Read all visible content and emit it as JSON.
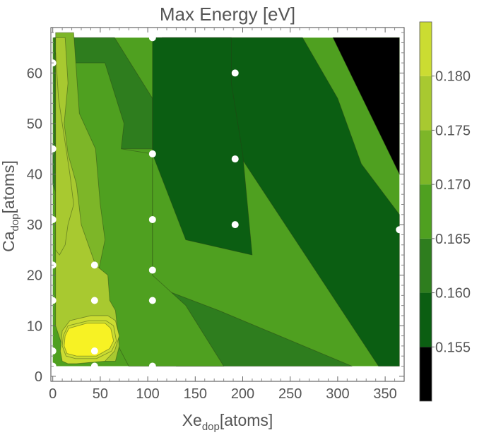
{
  "chart_data": {
    "type": "contour",
    "title": "Max Energy [eV]",
    "xlabel": {
      "main": "Xe",
      "sub": "dop",
      "unit": "[atoms]"
    },
    "ylabel": {
      "main": "Ca",
      "sub": "dop",
      "unit": "[atoms]"
    },
    "xlim": [
      -2,
      370
    ],
    "ylim": [
      -1,
      69
    ],
    "x_data_range": [
      0,
      365
    ],
    "y_data_range": [
      2,
      67
    ],
    "xticks": [
      0,
      50,
      100,
      150,
      200,
      250,
      300,
      350
    ],
    "yticks": [
      0,
      10,
      20,
      30,
      40,
      50,
      60
    ],
    "colorbar": {
      "levels": [
        0.15,
        0.155,
        0.16,
        0.165,
        0.17,
        0.175,
        0.18,
        0.185
      ],
      "tick_values": [
        0.155,
        0.16,
        0.165,
        0.17,
        0.175,
        0.18
      ],
      "tick_labels": [
        "0.155",
        "0.160",
        "0.165",
        "0.170",
        "0.175",
        "0.180"
      ],
      "colors": [
        "#000000",
        "#0b5e12",
        "#2e7d1e",
        "#4fa020",
        "#7db628",
        "#a8c930",
        "#cbdc32",
        "#f7f224"
      ]
    },
    "sample_points": [
      {
        "x": 0,
        "y": 2
      },
      {
        "x": 0,
        "y": 5
      },
      {
        "x": 0,
        "y": 15
      },
      {
        "x": 0,
        "y": 22
      },
      {
        "x": 0,
        "y": 31
      },
      {
        "x": 0,
        "y": 45
      },
      {
        "x": 0,
        "y": 62
      },
      {
        "x": 44,
        "y": 2
      },
      {
        "x": 44,
        "y": 5
      },
      {
        "x": 44,
        "y": 15
      },
      {
        "x": 44,
        "y": 22
      },
      {
        "x": 105,
        "y": 2
      },
      {
        "x": 105,
        "y": 15
      },
      {
        "x": 105,
        "y": 21
      },
      {
        "x": 105,
        "y": 31
      },
      {
        "x": 105,
        "y": 44
      },
      {
        "x": 105,
        "y": 67
      },
      {
        "x": 192,
        "y": 30
      },
      {
        "x": 192,
        "y": 43
      },
      {
        "x": 192,
        "y": 60
      },
      {
        "x": 365,
        "y": 29
      }
    ],
    "regions": [
      {
        "level": 0.1575,
        "polygon": [
          [
            115,
            67
          ],
          [
            263,
            67
          ],
          [
            300,
            55
          ],
          [
            325,
            42
          ],
          [
            365,
            32
          ],
          [
            365,
            2
          ],
          [
            343,
            2
          ]
        ]
      },
      {
        "level": 0.1525,
        "polygon": [
          [
            295,
            67
          ],
          [
            365,
            67
          ],
          [
            365,
            40
          ]
        ]
      },
      {
        "level": 0.1625,
        "polygon": [
          [
            105,
            42
          ],
          [
            105,
            18
          ],
          [
            175,
            13
          ],
          [
            315,
            2
          ],
          [
            130,
            2
          ],
          [
            90,
            10
          ]
        ]
      },
      {
        "level": 0.1625,
        "polygon": [
          [
            1,
            67
          ],
          [
            65,
            67
          ],
          [
            105,
            55
          ],
          [
            105,
            45
          ],
          [
            1,
            45
          ]
        ]
      },
      {
        "level": 0.1575,
        "polygon": [
          [
            105,
            67
          ],
          [
            188,
            67
          ],
          [
            188,
            58
          ],
          [
            200,
            44
          ],
          [
            210,
            24
          ],
          [
            140,
            27
          ],
          [
            105,
            44
          ]
        ]
      },
      {
        "level": 0.1675,
        "polygon": [
          [
            6,
            36
          ],
          [
            6,
            62
          ],
          [
            55,
            62
          ],
          [
            75,
            50
          ],
          [
            72,
            45
          ],
          [
            105,
            44
          ],
          [
            105,
            20
          ],
          [
            140,
            14
          ],
          [
            180,
            2
          ],
          [
            80,
            2
          ],
          [
            30,
            20
          ]
        ]
      },
      {
        "level": 0.1725,
        "polygon": [
          [
            3,
            68
          ],
          [
            22,
            68
          ],
          [
            25,
            60
          ],
          [
            28,
            52
          ],
          [
            45,
            45
          ],
          [
            50,
            34
          ],
          [
            55,
            27
          ],
          [
            45,
            18
          ],
          [
            38,
            12
          ],
          [
            30,
            9
          ],
          [
            15,
            8
          ],
          [
            5,
            12
          ]
        ]
      },
      {
        "level": 0.1675,
        "polygon": [
          [
            3,
            32
          ],
          [
            6,
            27
          ],
          [
            8,
            40
          ],
          [
            12,
            48
          ],
          [
            6,
            52
          ],
          [
            3,
            45
          ]
        ]
      },
      {
        "level": 0.1625,
        "polygon": [
          [
            0,
            38
          ],
          [
            4,
            36
          ],
          [
            6,
            42
          ],
          [
            4,
            46
          ],
          [
            0,
            46
          ]
        ]
      },
      {
        "level": 0.1775,
        "polygon": [
          [
            3,
            67
          ],
          [
            13,
            67
          ],
          [
            16,
            58
          ],
          [
            12,
            50
          ],
          [
            16,
            44
          ],
          [
            25,
            38
          ],
          [
            30,
            30
          ],
          [
            45,
            22
          ],
          [
            58,
            20
          ],
          [
            60,
            15
          ],
          [
            66,
            13
          ],
          [
            70,
            6
          ],
          [
            66,
            3
          ],
          [
            20,
            3
          ],
          [
            10,
            6
          ],
          [
            3,
            10
          ]
        ]
      },
      {
        "level": 0.1775,
        "polygon": [
          [
            3,
            64
          ],
          [
            6,
            55
          ],
          [
            10,
            50
          ],
          [
            18,
            40
          ],
          [
            22,
            34
          ],
          [
            16,
            30
          ],
          [
            13,
            26
          ],
          [
            7,
            24
          ],
          [
            3,
            25
          ]
        ]
      },
      {
        "level": 0.1825,
        "polygon": [
          [
            8,
            5
          ],
          [
            10,
            3
          ],
          [
            16,
            2.5
          ],
          [
            25,
            2.5
          ],
          [
            55,
            3
          ],
          [
            65,
            5
          ],
          [
            70,
            8
          ],
          [
            66,
            11
          ],
          [
            58,
            12
          ],
          [
            40,
            12
          ],
          [
            18,
            11
          ],
          [
            10,
            9
          ]
        ]
      },
      {
        "level": 0.1825,
        "polygon": [
          [
            10,
            6
          ],
          [
            14,
            4
          ],
          [
            24,
            3.5
          ],
          [
            46,
            3.5
          ],
          [
            62,
            5
          ],
          [
            67,
            7
          ],
          [
            64,
            10
          ],
          [
            56,
            11
          ],
          [
            38,
            11
          ],
          [
            16,
            10
          ],
          [
            11,
            8
          ]
        ]
      },
      {
        "level": 0.1875,
        "polygon": [
          [
            12,
            6
          ],
          [
            15,
            4.5
          ],
          [
            25,
            4
          ],
          [
            46,
            4
          ],
          [
            60,
            5.5
          ],
          [
            64,
            7
          ],
          [
            61,
            9.5
          ],
          [
            55,
            10.5
          ],
          [
            36,
            10.5
          ],
          [
            17,
            9.5
          ],
          [
            13,
            8
          ]
        ]
      }
    ]
  }
}
